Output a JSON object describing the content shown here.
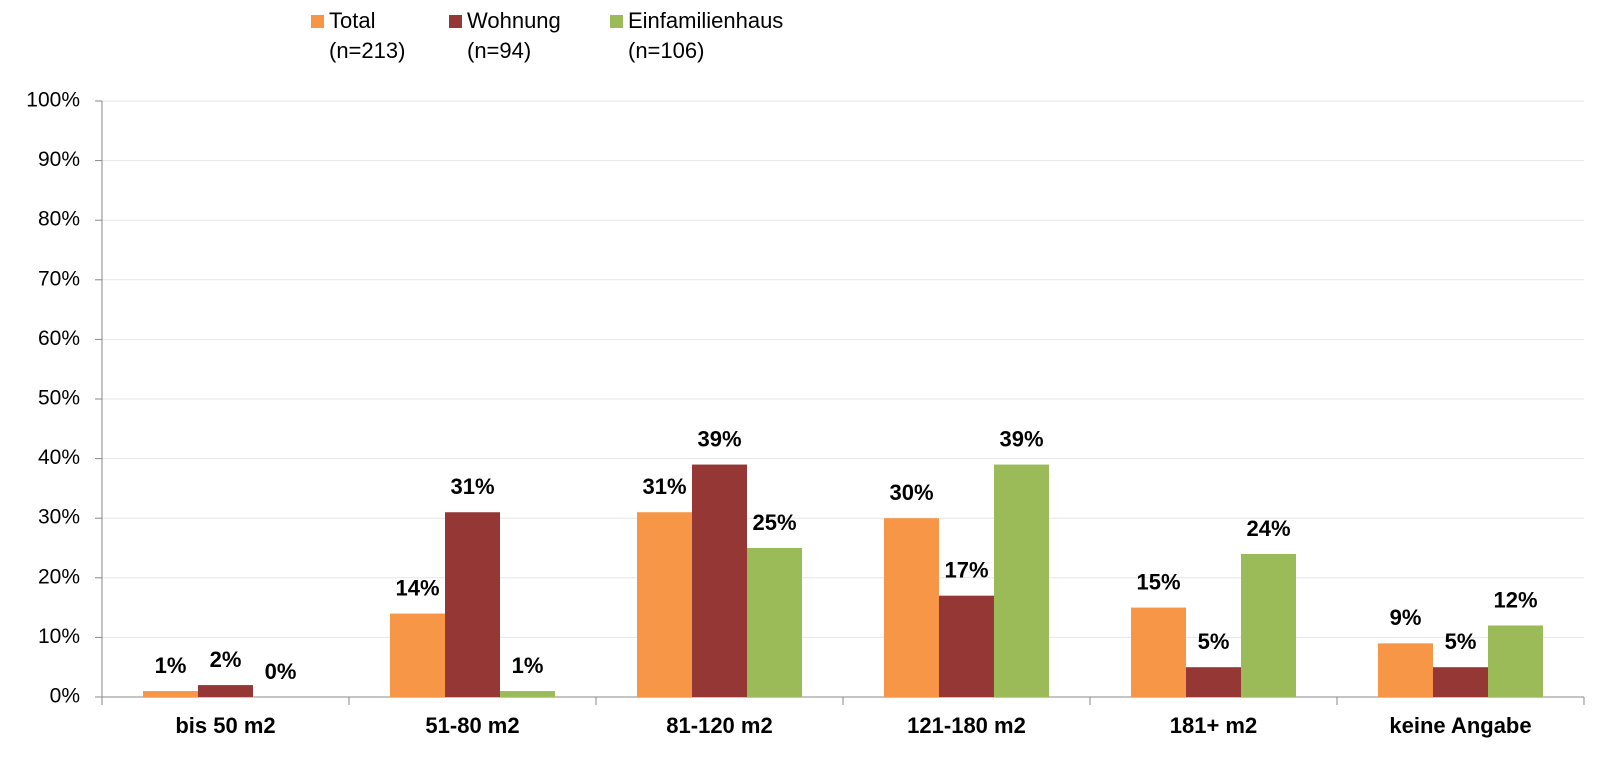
{
  "chart_data": {
    "type": "bar",
    "categories": [
      "bis 50 m2",
      "51-80 m2",
      "81-120 m2",
      "121-180 m2",
      "181+ m2",
      "keine Angabe"
    ],
    "series": [
      {
        "name": "Total",
        "sample": "(n=213)",
        "color": "#f79646",
        "values": [
          1,
          14,
          31,
          30,
          15,
          9
        ],
        "value_labels": [
          "1%",
          "14%",
          "31%",
          "30%",
          "15%",
          "9%"
        ]
      },
      {
        "name": "Wohnung",
        "sample": "(n=94)",
        "color": "#953735",
        "values": [
          2,
          31,
          39,
          17,
          5,
          5
        ],
        "value_labels": [
          "2%",
          "31%",
          "39%",
          "17%",
          "5%",
          "5%"
        ]
      },
      {
        "name": "Einfamilienhaus",
        "sample": "(n=106)",
        "color": "#9bbb59",
        "values": [
          0,
          1,
          25,
          39,
          24,
          12
        ],
        "value_labels": [
          "0%",
          "1%",
          "25%",
          "39%",
          "24%",
          "12%"
        ]
      }
    ],
    "ylim": [
      0,
      100
    ],
    "yticks": [
      {
        "value": 0,
        "label": "0%"
      },
      {
        "value": 10,
        "label": "10%"
      },
      {
        "value": 20,
        "label": "20%"
      },
      {
        "value": 30,
        "label": "30%"
      },
      {
        "value": 40,
        "label": "40%"
      },
      {
        "value": 50,
        "label": "50%"
      },
      {
        "value": 60,
        "label": "60%"
      },
      {
        "value": 70,
        "label": "70%"
      },
      {
        "value": 80,
        "label": "80%"
      },
      {
        "value": 90,
        "label": "90%"
      },
      {
        "value": 100,
        "label": "100%"
      }
    ],
    "grid": true,
    "legend": "top"
  }
}
